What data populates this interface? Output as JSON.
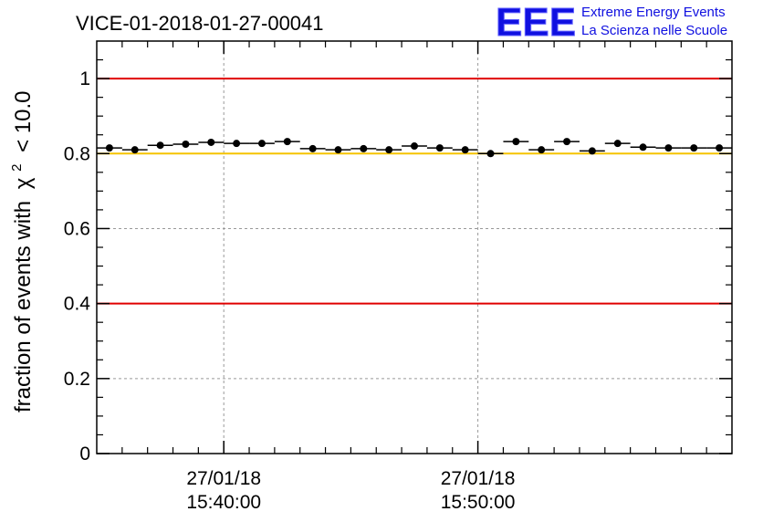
{
  "chart_data": {
    "type": "scatter",
    "title": "VICE-01-2018-01-27-00041",
    "ylabel": "fraction of events with",
    "ylabel_symbol": "χ",
    "ylabel_superscript": "2",
    "ylabel_suffix": "< 10.0",
    "ylim": [
      0,
      1.1
    ],
    "yticks": [
      0,
      0.2,
      0.4,
      0.6,
      0.8,
      1
    ],
    "ytick_labels": [
      "0",
      "0.2",
      "0.4",
      "0.6",
      "0.8",
      "1"
    ],
    "xlim_minutes": [
      0,
      25
    ],
    "xticks": [
      {
        "minute": 5,
        "date": "27/01/18",
        "time": "15:40:00"
      },
      {
        "minute": 15,
        "date": "27/01/18",
        "time": "15:50:00"
      }
    ],
    "grid": true,
    "reference_lines": [
      {
        "value": 1.0,
        "color": "#e00000"
      },
      {
        "value": 0.8,
        "color": "#f5c400"
      },
      {
        "value": 0.4,
        "color": "#e00000"
      }
    ],
    "series": [
      {
        "name": "fraction",
        "x": [
          0.5,
          1.5,
          2.5,
          3.5,
          4.5,
          5.5,
          6.5,
          7.5,
          8.5,
          9.5,
          10.5,
          11.5,
          12.5,
          13.5,
          14.5,
          15.5,
          16.5,
          17.5,
          18.5,
          19.5,
          20.5,
          21.5,
          22.5,
          23.5,
          24.5
        ],
        "y": [
          0.815,
          0.81,
          0.822,
          0.825,
          0.83,
          0.827,
          0.827,
          0.832,
          0.813,
          0.81,
          0.813,
          0.81,
          0.82,
          0.815,
          0.81,
          0.8,
          0.832,
          0.81,
          0.832,
          0.807,
          0.827,
          0.817,
          0.815,
          0.815,
          0.815
        ]
      }
    ]
  },
  "logo": {
    "letters": "EEE",
    "line1": "Extreme Energy Events",
    "line2": "La Scienza nelle Scuole",
    "color": "#1010e0"
  }
}
